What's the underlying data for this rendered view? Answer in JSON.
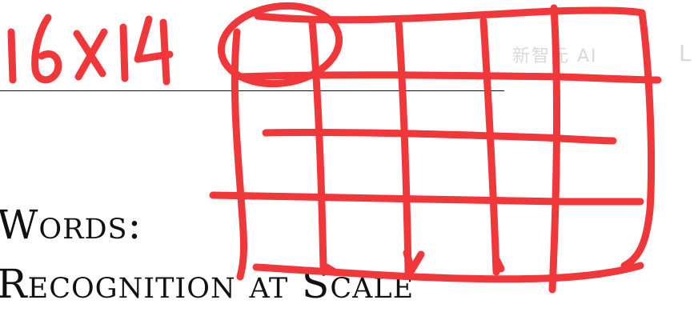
{
  "handwriting": {
    "dimension_note": "16x14",
    "ink_color": "#f0373a"
  },
  "document": {
    "title_line_1": "Words:",
    "title_line_2": "Recognition at Scale",
    "text_color": "#111111"
  },
  "watermark": {
    "text": "新智元 AI",
    "tail": "L"
  }
}
